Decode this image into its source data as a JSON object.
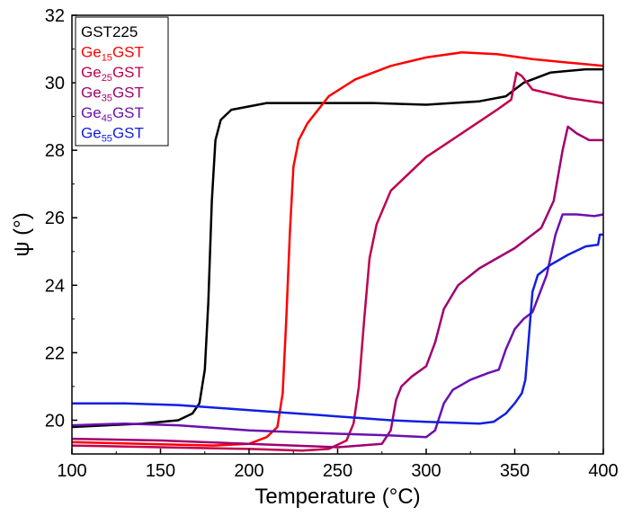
{
  "chart_data": {
    "type": "line",
    "xlabel": "Temperature (°C)",
    "ylabel": "ψ (°)",
    "xlim": [
      100,
      400
    ],
    "ylim": [
      19,
      32
    ],
    "xticks": [
      100,
      150,
      200,
      250,
      300,
      350,
      400
    ],
    "yticks": [
      20,
      22,
      24,
      26,
      28,
      30,
      32
    ],
    "grid": false,
    "legend_position": "top-left",
    "series": [
      {
        "name": "GST225",
        "name_base": "GST225",
        "name_sub": "",
        "name_suffix": "",
        "color": "#000000",
        "points": [
          [
            100,
            19.8
          ],
          [
            120,
            19.85
          ],
          [
            140,
            19.9
          ],
          [
            160,
            20.0
          ],
          [
            168,
            20.2
          ],
          [
            172,
            20.5
          ],
          [
            175,
            21.5
          ],
          [
            177,
            23.5
          ],
          [
            179,
            26.5
          ],
          [
            181,
            28.3
          ],
          [
            184,
            28.9
          ],
          [
            190,
            29.2
          ],
          [
            210,
            29.4
          ],
          [
            240,
            29.4
          ],
          [
            270,
            29.4
          ],
          [
            300,
            29.35
          ],
          [
            330,
            29.45
          ],
          [
            345,
            29.6
          ],
          [
            355,
            30.0
          ],
          [
            370,
            30.3
          ],
          [
            390,
            30.4
          ],
          [
            400,
            30.4
          ]
        ]
      },
      {
        "name": "Ge15GST",
        "name_base": "Ge",
        "name_sub": "15",
        "name_suffix": "GST",
        "color": "#ff0000",
        "points": [
          [
            100,
            19.35
          ],
          [
            140,
            19.3
          ],
          [
            180,
            19.25
          ],
          [
            200,
            19.3
          ],
          [
            210,
            19.5
          ],
          [
            216,
            19.8
          ],
          [
            219,
            20.8
          ],
          [
            221,
            23.0
          ],
          [
            223,
            25.5
          ],
          [
            225,
            27.5
          ],
          [
            228,
            28.3
          ],
          [
            233,
            28.8
          ],
          [
            245,
            29.6
          ],
          [
            260,
            30.1
          ],
          [
            280,
            30.5
          ],
          [
            300,
            30.75
          ],
          [
            320,
            30.9
          ],
          [
            340,
            30.85
          ],
          [
            360,
            30.7
          ],
          [
            380,
            30.6
          ],
          [
            400,
            30.5
          ]
        ]
      },
      {
        "name": "Ge25GST",
        "name_base": "Ge",
        "name_sub": "25",
        "name_suffix": "GST",
        "color": "#c00050",
        "points": [
          [
            100,
            19.25
          ],
          [
            150,
            19.2
          ],
          [
            200,
            19.15
          ],
          [
            230,
            19.1
          ],
          [
            245,
            19.15
          ],
          [
            255,
            19.4
          ],
          [
            259,
            19.9
          ],
          [
            262,
            21.0
          ],
          [
            265,
            23.0
          ],
          [
            268,
            24.8
          ],
          [
            272,
            25.8
          ],
          [
            280,
            26.8
          ],
          [
            300,
            27.8
          ],
          [
            320,
            28.5
          ],
          [
            340,
            29.2
          ],
          [
            348,
            29.5
          ],
          [
            351,
            30.3
          ],
          [
            354,
            30.2
          ],
          [
            360,
            29.8
          ],
          [
            380,
            29.55
          ],
          [
            400,
            29.4
          ]
        ]
      },
      {
        "name": "Ge35GST",
        "name_base": "Ge",
        "name_sub": "35",
        "name_suffix": "GST",
        "color": "#a00070",
        "points": [
          [
            100,
            19.45
          ],
          [
            150,
            19.4
          ],
          [
            200,
            19.3
          ],
          [
            250,
            19.2
          ],
          [
            275,
            19.3
          ],
          [
            280,
            19.7
          ],
          [
            283,
            20.6
          ],
          [
            286,
            21.0
          ],
          [
            292,
            21.3
          ],
          [
            300,
            21.6
          ],
          [
            305,
            22.3
          ],
          [
            310,
            23.3
          ],
          [
            318,
            24.0
          ],
          [
            330,
            24.5
          ],
          [
            350,
            25.1
          ],
          [
            365,
            25.7
          ],
          [
            372,
            26.5
          ],
          [
            377,
            28.0
          ],
          [
            380,
            28.7
          ],
          [
            385,
            28.5
          ],
          [
            392,
            28.3
          ],
          [
            400,
            28.3
          ]
        ]
      },
      {
        "name": "Ge45GST",
        "name_base": "Ge",
        "name_sub": "45",
        "name_suffix": "GST",
        "color": "#6a10b0",
        "points": [
          [
            100,
            19.85
          ],
          [
            130,
            19.9
          ],
          [
            160,
            19.85
          ],
          [
            200,
            19.7
          ],
          [
            250,
            19.6
          ],
          [
            280,
            19.55
          ],
          [
            300,
            19.5
          ],
          [
            305,
            19.7
          ],
          [
            310,
            20.5
          ],
          [
            315,
            20.9
          ],
          [
            325,
            21.2
          ],
          [
            335,
            21.4
          ],
          [
            341,
            21.5
          ],
          [
            345,
            22.1
          ],
          [
            350,
            22.7
          ],
          [
            355,
            23.0
          ],
          [
            360,
            23.2
          ],
          [
            368,
            24.3
          ],
          [
            373,
            25.5
          ],
          [
            377,
            26.1
          ],
          [
            385,
            26.1
          ],
          [
            395,
            26.05
          ],
          [
            400,
            26.1
          ]
        ]
      },
      {
        "name": "Ge55GST",
        "name_base": "Ge",
        "name_sub": "55",
        "name_suffix": "GST",
        "color": "#1020e0",
        "points": [
          [
            100,
            20.5
          ],
          [
            130,
            20.5
          ],
          [
            160,
            20.45
          ],
          [
            200,
            20.3
          ],
          [
            240,
            20.15
          ],
          [
            280,
            20.0
          ],
          [
            300,
            19.95
          ],
          [
            330,
            19.9
          ],
          [
            338,
            19.95
          ],
          [
            345,
            20.2
          ],
          [
            350,
            20.5
          ],
          [
            354,
            20.8
          ],
          [
            356,
            21.2
          ],
          [
            358,
            22.5
          ],
          [
            360,
            23.8
          ],
          [
            363,
            24.3
          ],
          [
            370,
            24.6
          ],
          [
            380,
            24.9
          ],
          [
            390,
            25.15
          ],
          [
            397,
            25.2
          ],
          [
            398,
            25.5
          ],
          [
            400,
            25.5
          ]
        ]
      }
    ]
  }
}
